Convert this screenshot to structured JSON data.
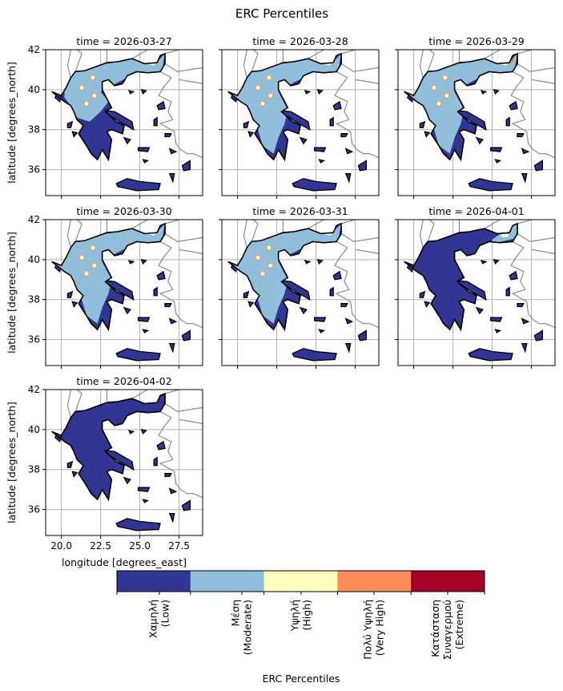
{
  "chart_data": {
    "type": "heatmap",
    "title": "ERC Percentiles",
    "xlabel": "longitude [degrees_east]",
    "ylabel": "latitude [degrees_north]",
    "xlim": [
      19,
      29
    ],
    "ylim": [
      34.7,
      42
    ],
    "xticks": [
      "20.0",
      "22.5",
      "25.0",
      "27.5"
    ],
    "xtick_values": [
      20,
      22.5,
      25,
      27.5
    ],
    "yticks": [
      "36",
      "38",
      "40",
      "42"
    ],
    "ytick_values": [
      36,
      38,
      40,
      42
    ],
    "grid": true,
    "panels": [
      {
        "title": "time = 2026-03-27",
        "dominant": "Moderate/Low",
        "hotspots": true
      },
      {
        "title": "time = 2026-03-28",
        "dominant": "Moderate",
        "hotspots": true
      },
      {
        "title": "time = 2026-03-29",
        "dominant": "Moderate",
        "hotspots": true
      },
      {
        "title": "time = 2026-03-30",
        "dominant": "Moderate",
        "hotspots": true
      },
      {
        "title": "time = 2026-03-31",
        "dominant": "Moderate",
        "hotspots": true
      },
      {
        "title": "time = 2026-04-01",
        "dominant": "Low",
        "hotspots": false
      },
      {
        "title": "time = 2026-04-02",
        "dominant": "Low",
        "hotspots": false
      }
    ],
    "colorbar": {
      "label": "ERC Percentiles",
      "categories": [
        {
          "label": "Χαμηλή\n(Low)",
          "color": "#313695"
        },
        {
          "label": "Μέση\n(Moderate)",
          "color": "#91bfdb"
        },
        {
          "label": "Υψηλή\n(High)",
          "color": "#ffffbf"
        },
        {
          "label": "Πολύ Υψηλή\n(Very High)",
          "color": "#fc8d59"
        },
        {
          "label": "Κατάσταση\nΣυναγερμού\n(Extreme)",
          "color": "#a50026"
        }
      ]
    }
  }
}
